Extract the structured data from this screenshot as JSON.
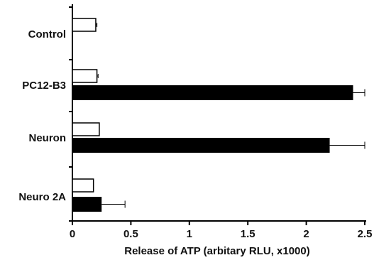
{
  "chart_data": {
    "type": "bar",
    "orientation": "horizontal",
    "categories": [
      "Control",
      "PC12-B3",
      "Neuron",
      "Neuro 2A"
    ],
    "series": [
      {
        "values": [
          0.2,
          0.21,
          0.23,
          0.18
        ],
        "errors": [
          0.01,
          0.01,
          0.0,
          0.0
        ],
        "fill": "#ffffff"
      },
      {
        "values": [
          null,
          2.4,
          2.2,
          0.25
        ],
        "errors": [
          null,
          0.1,
          0.3,
          0.2
        ],
        "fill": "#000000"
      }
    ],
    "xlabel": "Release of ATP (arbitary RLU, x1000)",
    "ylabel": "",
    "title": "",
    "xlim": [
      0,
      2.5
    ],
    "xticks": [
      "0",
      "0.5",
      "1",
      "1.5",
      "2",
      "2.5"
    ],
    "grid": false,
    "legend": "none"
  }
}
